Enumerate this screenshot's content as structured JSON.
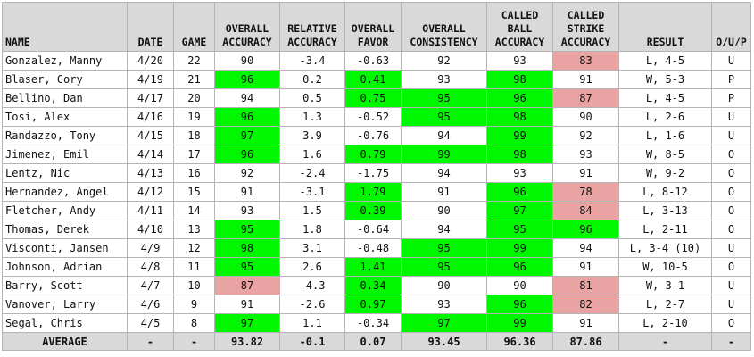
{
  "colors": {
    "header_bg": "#d9d9d9",
    "good_highlight": "#00f700",
    "bad_highlight": "#e9a3a3",
    "border": "#b4b4b4"
  },
  "headers": {
    "name": "NAME",
    "date": "DATE",
    "game": "GAME",
    "overall_accuracy": "OVERALL ACCURACY",
    "relative_accuracy": "RELATIVE ACCURACY",
    "overall_favor": "OVERALL FAVOR",
    "overall_consistency": "OVERALL CONSISTENCY",
    "called_ball_accuracy": "CALLED BALL ACCURACY",
    "called_strike_accuracy": "CALLED STRIKE ACCURACY",
    "result": "RESULT",
    "oup": "O/U/P"
  },
  "rows": [
    {
      "name": "Gonzalez, Manny",
      "date": "4/20",
      "game": "22",
      "oa": "90",
      "ra": "-3.4",
      "of": "-0.63",
      "oc": "92",
      "cba": "93",
      "csa": "83",
      "result": "L, 4-5",
      "oup": "U",
      "hl": {
        "oa": "",
        "of": "",
        "oc": "",
        "cba": "",
        "csa": "red"
      }
    },
    {
      "name": "Blaser, Cory",
      "date": "4/19",
      "game": "21",
      "oa": "96",
      "ra": "0.2",
      "of": "0.41",
      "oc": "93",
      "cba": "98",
      "csa": "91",
      "result": "W, 5-3",
      "oup": "P",
      "hl": {
        "oa": "green",
        "of": "green",
        "oc": "",
        "cba": "green",
        "csa": ""
      }
    },
    {
      "name": "Bellino, Dan",
      "date": "4/17",
      "game": "20",
      "oa": "94",
      "ra": "0.5",
      "of": "0.75",
      "oc": "95",
      "cba": "96",
      "csa": "87",
      "result": "L, 4-5",
      "oup": "P",
      "hl": {
        "oa": "",
        "of": "green",
        "oc": "green",
        "cba": "green",
        "csa": "red"
      }
    },
    {
      "name": "Tosi, Alex",
      "date": "4/16",
      "game": "19",
      "oa": "96",
      "ra": "1.3",
      "of": "-0.52",
      "oc": "95",
      "cba": "98",
      "csa": "90",
      "result": "L, 2-6",
      "oup": "U",
      "hl": {
        "oa": "green",
        "of": "",
        "oc": "green",
        "cba": "green",
        "csa": ""
      }
    },
    {
      "name": "Randazzo, Tony",
      "date": "4/15",
      "game": "18",
      "oa": "97",
      "ra": "3.9",
      "of": "-0.76",
      "oc": "94",
      "cba": "99",
      "csa": "92",
      "result": "L, 1-6",
      "oup": "U",
      "hl": {
        "oa": "green",
        "of": "",
        "oc": "",
        "cba": "green",
        "csa": ""
      }
    },
    {
      "name": "Jimenez, Emil",
      "date": "4/14",
      "game": "17",
      "oa": "96",
      "ra": "1.6",
      "of": "0.79",
      "oc": "99",
      "cba": "98",
      "csa": "93",
      "result": "W, 8-5",
      "oup": "O",
      "hl": {
        "oa": "green",
        "of": "green",
        "oc": "green",
        "cba": "green",
        "csa": ""
      }
    },
    {
      "name": "Lentz, Nic",
      "date": "4/13",
      "game": "16",
      "oa": "92",
      "ra": "-2.4",
      "of": "-1.75",
      "oc": "94",
      "cba": "93",
      "csa": "91",
      "result": "W, 9-2",
      "oup": "O",
      "hl": {
        "oa": "",
        "of": "",
        "oc": "",
        "cba": "",
        "csa": ""
      }
    },
    {
      "name": "Hernandez, Angel",
      "date": "4/12",
      "game": "15",
      "oa": "91",
      "ra": "-3.1",
      "of": "1.79",
      "oc": "91",
      "cba": "96",
      "csa": "78",
      "result": "L, 8-12",
      "oup": "O",
      "hl": {
        "oa": "",
        "of": "green",
        "oc": "",
        "cba": "green",
        "csa": "red"
      }
    },
    {
      "name": "Fletcher, Andy",
      "date": "4/11",
      "game": "14",
      "oa": "93",
      "ra": "1.5",
      "of": "0.39",
      "oc": "90",
      "cba": "97",
      "csa": "84",
      "result": "L, 3-13",
      "oup": "O",
      "hl": {
        "oa": "",
        "of": "green",
        "oc": "",
        "cba": "green",
        "csa": "red"
      }
    },
    {
      "name": "Thomas, Derek",
      "date": "4/10",
      "game": "13",
      "oa": "95",
      "ra": "1.8",
      "of": "-0.64",
      "oc": "94",
      "cba": "95",
      "csa": "96",
      "result": "L, 2-11",
      "oup": "O",
      "hl": {
        "oa": "green",
        "of": "",
        "oc": "",
        "cba": "green",
        "csa": "green"
      }
    },
    {
      "name": "Visconti, Jansen",
      "date": "4/9",
      "game": "12",
      "oa": "98",
      "ra": "3.1",
      "of": "-0.48",
      "oc": "95",
      "cba": "99",
      "csa": "94",
      "result": "L, 3-4 (10)",
      "oup": "U",
      "hl": {
        "oa": "green",
        "of": "",
        "oc": "green",
        "cba": "green",
        "csa": ""
      }
    },
    {
      "name": "Johnson, Adrian",
      "date": "4/8",
      "game": "11",
      "oa": "95",
      "ra": "2.6",
      "of": "1.41",
      "oc": "95",
      "cba": "96",
      "csa": "91",
      "result": "W, 10-5",
      "oup": "O",
      "hl": {
        "oa": "green",
        "of": "green",
        "oc": "green",
        "cba": "green",
        "csa": ""
      }
    },
    {
      "name": "Barry, Scott",
      "date": "4/7",
      "game": "10",
      "oa": "87",
      "ra": "-4.3",
      "of": "0.34",
      "oc": "90",
      "cba": "90",
      "csa": "81",
      "result": "W, 3-1",
      "oup": "U",
      "hl": {
        "oa": "red",
        "of": "green",
        "oc": "",
        "cba": "",
        "csa": "red"
      }
    },
    {
      "name": "Vanover, Larry",
      "date": "4/6",
      "game": "9",
      "oa": "91",
      "ra": "-2.6",
      "of": "0.97",
      "oc": "93",
      "cba": "96",
      "csa": "82",
      "result": "L, 2-7",
      "oup": "U",
      "hl": {
        "oa": "",
        "of": "green",
        "oc": "",
        "cba": "green",
        "csa": "red"
      }
    },
    {
      "name": "Segal, Chris",
      "date": "4/5",
      "game": "8",
      "oa": "97",
      "ra": "1.1",
      "of": "-0.34",
      "oc": "97",
      "cba": "99",
      "csa": "91",
      "result": "L, 2-10",
      "oup": "O",
      "hl": {
        "oa": "green",
        "of": "",
        "oc": "green",
        "cba": "green",
        "csa": ""
      }
    }
  ],
  "average": {
    "label": "AVERAGE",
    "date": "-",
    "game": "-",
    "oa": "93.82",
    "ra": "-0.1",
    "of": "0.07",
    "oc": "93.45",
    "cba": "96.36",
    "csa": "87.86",
    "result": "-",
    "oup": "-"
  }
}
